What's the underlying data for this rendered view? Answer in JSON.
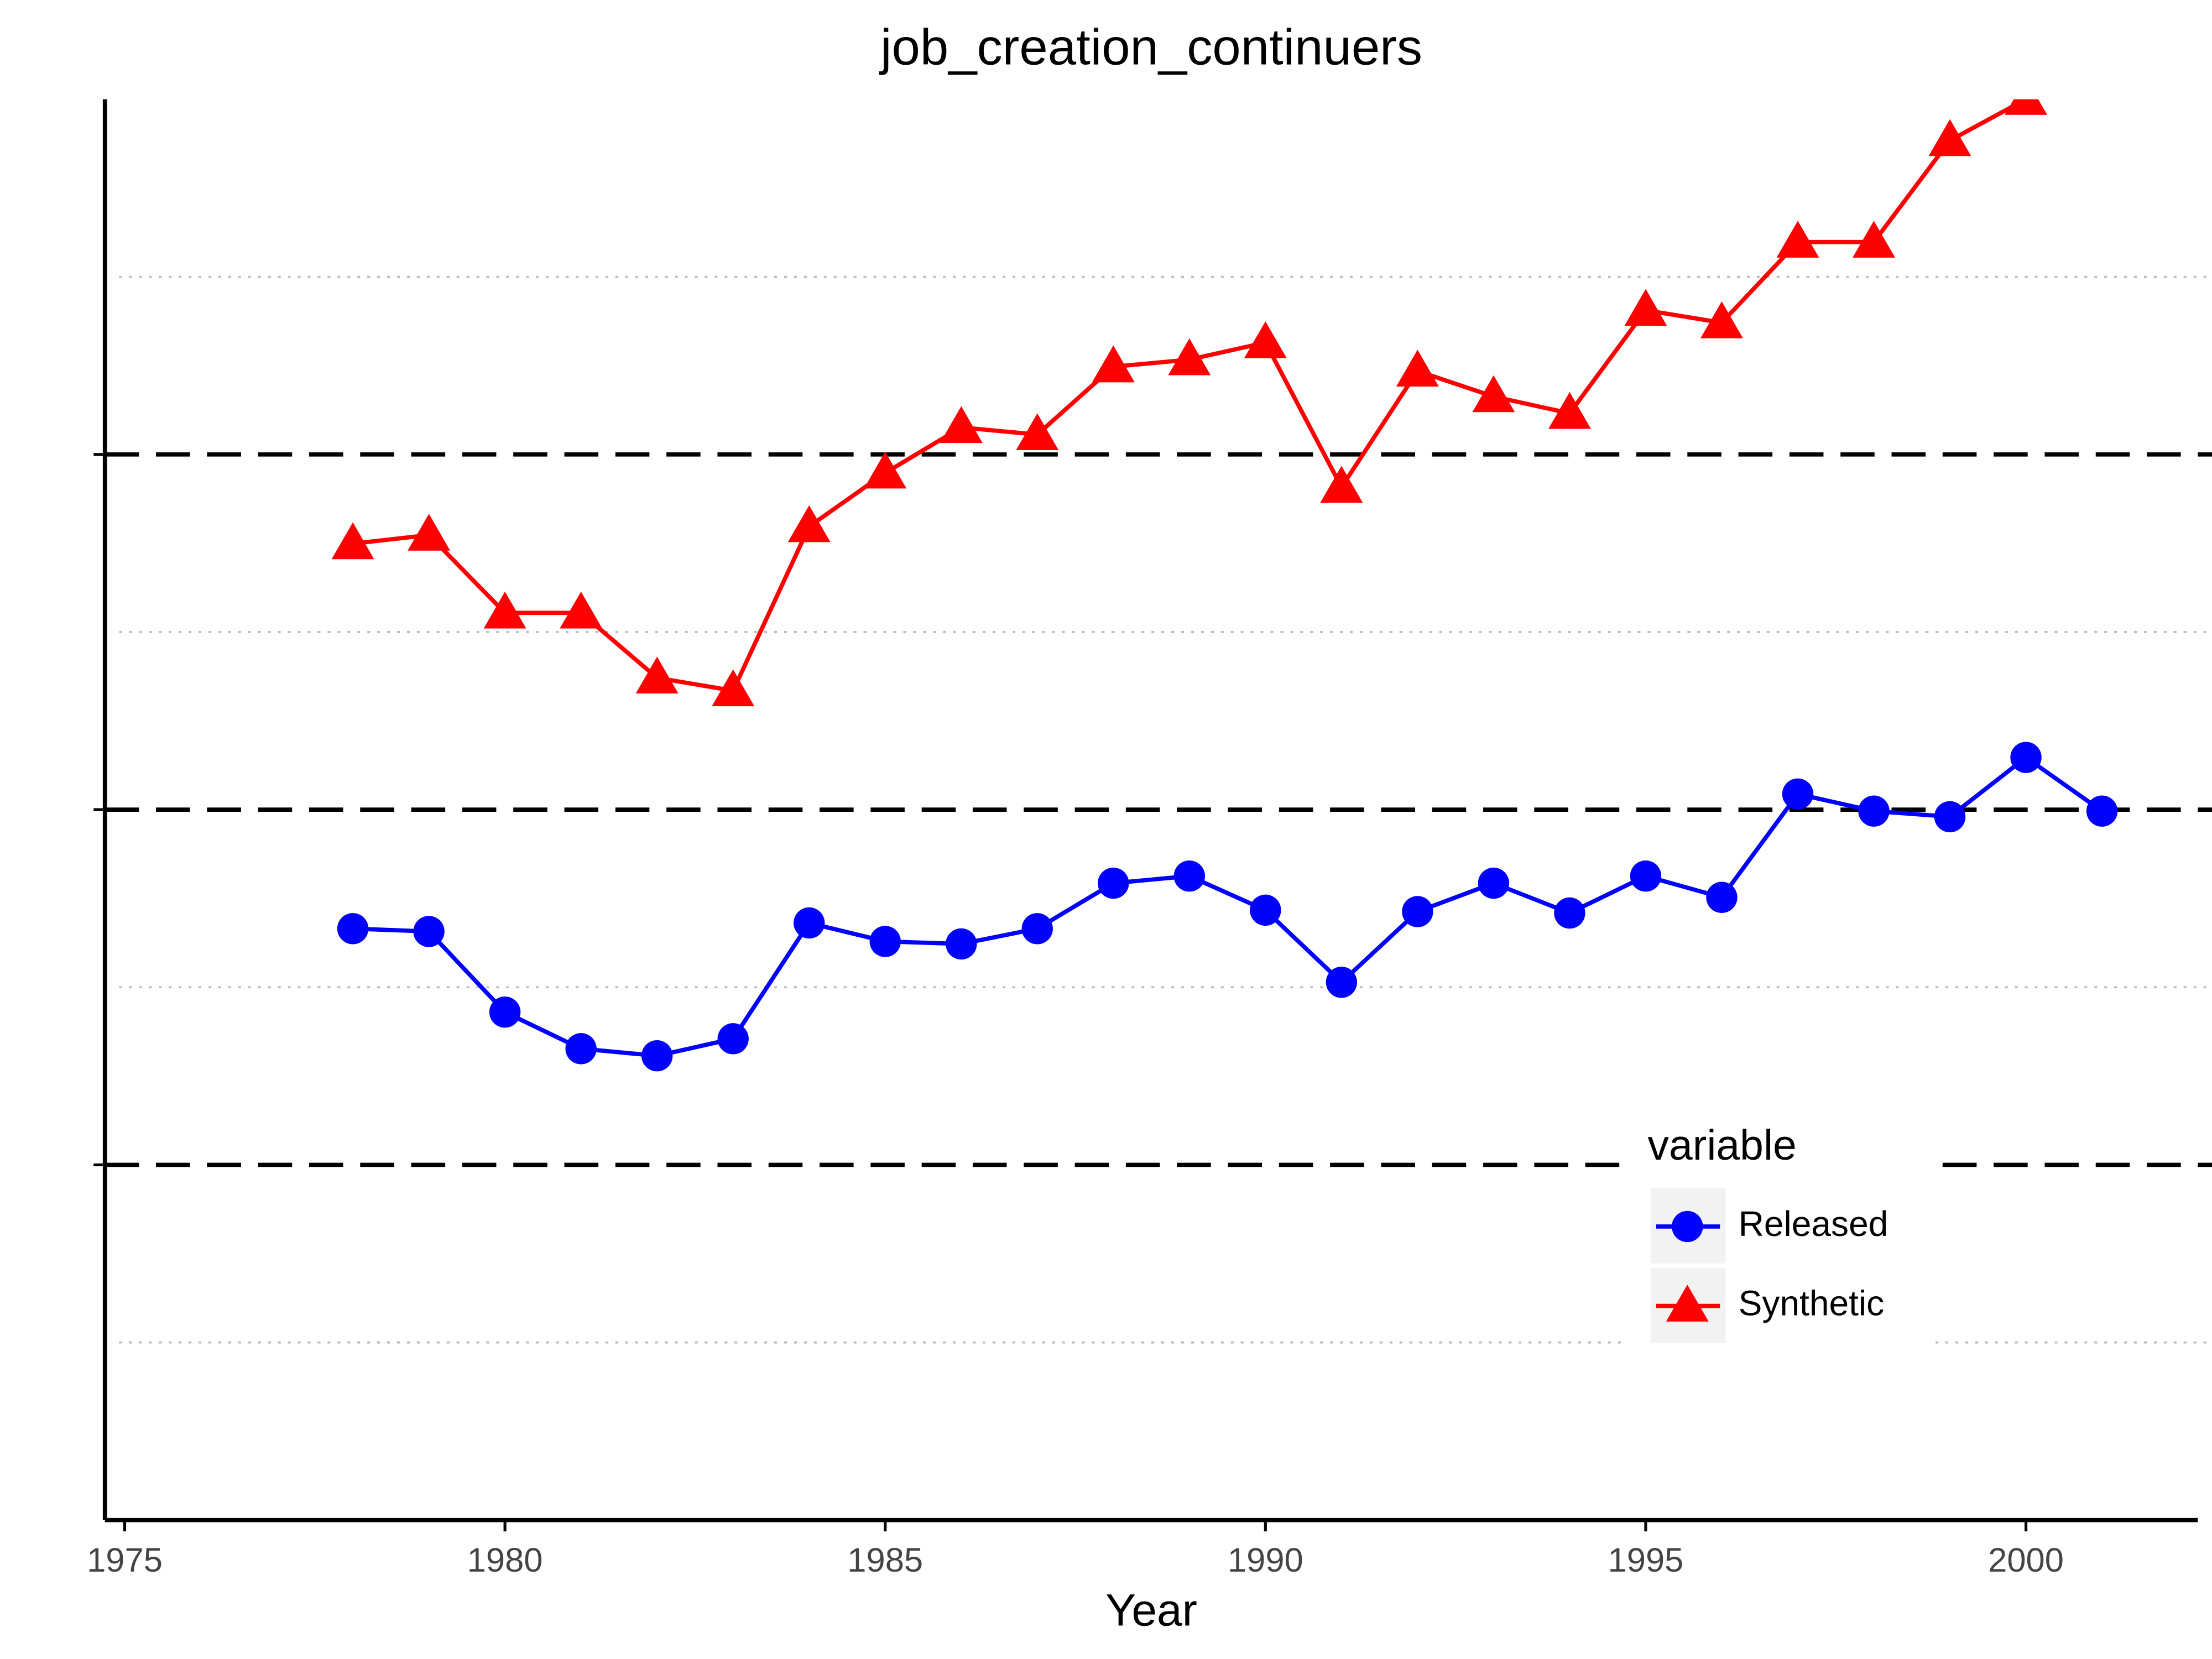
{
  "chart_data": {
    "type": "line",
    "title": "job_creation_continuers",
    "x_label": "Year",
    "x": [
      1978,
      1979,
      1980,
      1981,
      1982,
      1983,
      1984,
      1985,
      1986,
      1987,
      1988,
      1989,
      1990,
      1991,
      1992,
      1993,
      1994,
      1995,
      1996,
      1997,
      1998,
      1999,
      2000,
      2001
    ],
    "series": [
      {
        "name": "Released",
        "color": "#0000ff",
        "marker": "circle",
        "values": [
          0.665,
          0.657,
          0.43,
          0.327,
          0.307,
          0.355,
          0.681,
          0.629,
          0.622,
          0.665,
          0.793,
          0.813,
          0.717,
          0.514,
          0.713,
          0.793,
          0.709,
          0.813,
          0.753,
          1.044,
          0.996,
          0.98,
          1.147,
          0.996
        ]
      },
      {
        "name": "Synthetic",
        "color": "#ff0000",
        "marker": "triangle",
        "values": [
          1.749,
          1.773,
          1.554,
          1.554,
          1.371,
          1.335,
          1.797,
          1.948,
          2.076,
          2.056,
          2.247,
          2.267,
          2.315,
          1.908,
          2.235,
          2.163,
          2.116,
          2.406,
          2.371,
          2.598,
          2.598,
          2.884,
          3.0,
          null
        ]
      }
    ],
    "xlim": [
      1974.74,
      2002.26
    ],
    "xticks": [
      1975,
      1980,
      1985,
      1990,
      1995,
      2000
    ],
    "ylim": [
      -1,
      3
    ],
    "yticks": [
      0,
      1,
      2
    ],
    "y_minor_grid": [
      -0.5,
      0.5,
      1.5,
      2.5
    ],
    "legend_title": "variable",
    "legend_position": "bottom-right"
  }
}
